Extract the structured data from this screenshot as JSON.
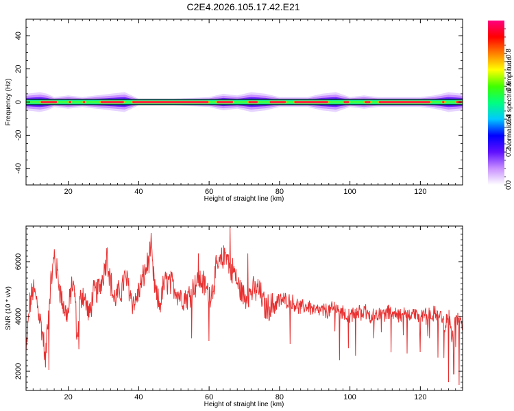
{
  "chart_data": [
    {
      "type": "heatmap",
      "title": "C2E4.2026.105.17.42.E21",
      "xlabel": "Height of straight line (km)",
      "ylabel": "Frequency (Hz)",
      "xlim": [
        8,
        132
      ],
      "ylim": [
        -50,
        50
      ],
      "xticks": [
        20,
        40,
        60,
        80,
        100,
        120
      ],
      "yticks": [
        -40,
        -20,
        0,
        20,
        40
      ],
      "colorbar": {
        "label": "Normalized spectral amplitude",
        "range": [
          0,
          1
        ],
        "ticks": [
          0,
          0.2,
          0.4,
          0.6,
          0.8
        ],
        "colors": [
          "#ffffff",
          "#c890ff",
          "#6010ff",
          "#0000ff",
          "#00c8ff",
          "#00ff80",
          "#40ff00",
          "#ffff00",
          "#ff8000",
          "#ff0000",
          "#ff0080"
        ]
      },
      "band": {
        "center_hz": 0,
        "core_halfwidth_hz": 1,
        "spread_hz": [
          [
            8,
            5
          ],
          [
            12,
            6
          ],
          [
            14,
            5
          ],
          [
            16,
            3
          ],
          [
            20,
            4
          ],
          [
            24,
            3
          ],
          [
            28,
            4
          ],
          [
            32,
            5
          ],
          [
            36,
            6
          ],
          [
            40,
            2
          ],
          [
            50,
            2
          ],
          [
            60,
            3
          ],
          [
            64,
            5
          ],
          [
            68,
            4
          ],
          [
            72,
            6
          ],
          [
            76,
            5
          ],
          [
            80,
            3
          ],
          [
            84,
            3
          ],
          [
            88,
            3
          ],
          [
            92,
            5
          ],
          [
            96,
            6
          ],
          [
            100,
            3
          ],
          [
            104,
            4
          ],
          [
            108,
            3
          ],
          [
            112,
            3
          ],
          [
            116,
            3
          ],
          [
            120,
            3
          ],
          [
            124,
            4
          ],
          [
            128,
            6
          ],
          [
            132,
            5
          ]
        ],
        "peak_segments_km": [
          [
            12,
            17
          ],
          [
            20,
            21
          ],
          [
            24,
            25
          ],
          [
            29,
            36
          ],
          [
            38,
            60
          ],
          [
            62,
            67
          ],
          [
            71,
            74
          ],
          [
            77,
            82
          ],
          [
            84,
            94
          ],
          [
            98,
            100
          ],
          [
            104,
            106
          ],
          [
            108,
            123
          ],
          [
            126,
            127
          ],
          [
            130,
            132
          ]
        ]
      }
    },
    {
      "type": "line",
      "xlabel": "Height of straight line (km)",
      "ylabel": "SNR (10 * v/v)",
      "xlim": [
        8,
        132
      ],
      "ylim": [
        1300,
        7300
      ],
      "xticks": [
        20,
        40,
        60,
        80,
        100,
        120
      ],
      "yticks": [
        2000,
        4000,
        6000
      ],
      "color": "#e83030",
      "x": [
        8,
        9,
        10,
        11,
        12,
        13,
        13.5,
        14,
        15,
        16,
        17,
        18,
        19,
        20,
        21,
        22,
        22.5,
        23,
        24,
        25,
        26,
        27,
        28,
        29,
        30,
        31,
        32,
        33,
        34,
        35,
        36,
        37,
        38,
        39,
        40,
        41,
        42,
        43,
        43.5,
        44,
        45,
        46,
        47,
        48,
        50,
        52,
        54,
        56,
        58,
        60,
        61,
        62,
        63,
        64,
        65,
        66,
        67,
        68,
        70,
        72,
        74,
        76,
        78,
        80,
        82,
        84,
        86,
        88,
        90,
        92,
        94,
        96,
        98,
        100,
        102,
        104,
        106,
        108,
        110,
        112,
        114,
        116,
        118,
        120,
        122,
        124,
        126,
        127,
        128,
        129,
        130,
        131,
        132
      ],
      "y": [
        2600,
        4400,
        5000,
        4600,
        3900,
        3100,
        2200,
        3600,
        5200,
        6100,
        5500,
        4700,
        4200,
        4100,
        5200,
        4700,
        2900,
        4300,
        4900,
        4500,
        4000,
        4800,
        4900,
        5100,
        5600,
        6200,
        5300,
        4600,
        4800,
        4900,
        5400,
        5200,
        4600,
        4500,
        4900,
        5300,
        5700,
        6100,
        6700,
        5600,
        4700,
        4400,
        5100,
        5300,
        5100,
        4700,
        4700,
        5200,
        5300,
        4800,
        5000,
        5700,
        5900,
        6100,
        6400,
        5600,
        5700,
        5200,
        4700,
        4900,
        5000,
        4300,
        4400,
        4600,
        4600,
        4500,
        4300,
        4400,
        4200,
        4200,
        4200,
        4300,
        4100,
        4000,
        4100,
        4200,
        4000,
        4100,
        4100,
        4200,
        4000,
        4100,
        4100,
        4000,
        4000,
        4100,
        4000,
        3700,
        4100,
        3200,
        3900,
        3900,
        3600
      ],
      "dips": [
        [
          14.5,
          2050
        ],
        [
          23,
          2800
        ],
        [
          55,
          3200
        ],
        [
          60,
          3100
        ],
        [
          83,
          3000
        ],
        [
          97,
          2400
        ],
        [
          120,
          2700
        ],
        [
          125,
          2500
        ],
        [
          128,
          1600
        ],
        [
          129.5,
          1900
        ],
        [
          131,
          1500
        ]
      ],
      "spikes": [
        [
          16,
          6450
        ],
        [
          31,
          6500
        ],
        [
          43.5,
          7050
        ],
        [
          66,
          7250
        ],
        [
          71,
          6300
        ],
        [
          57,
          6300
        ]
      ]
    }
  ]
}
